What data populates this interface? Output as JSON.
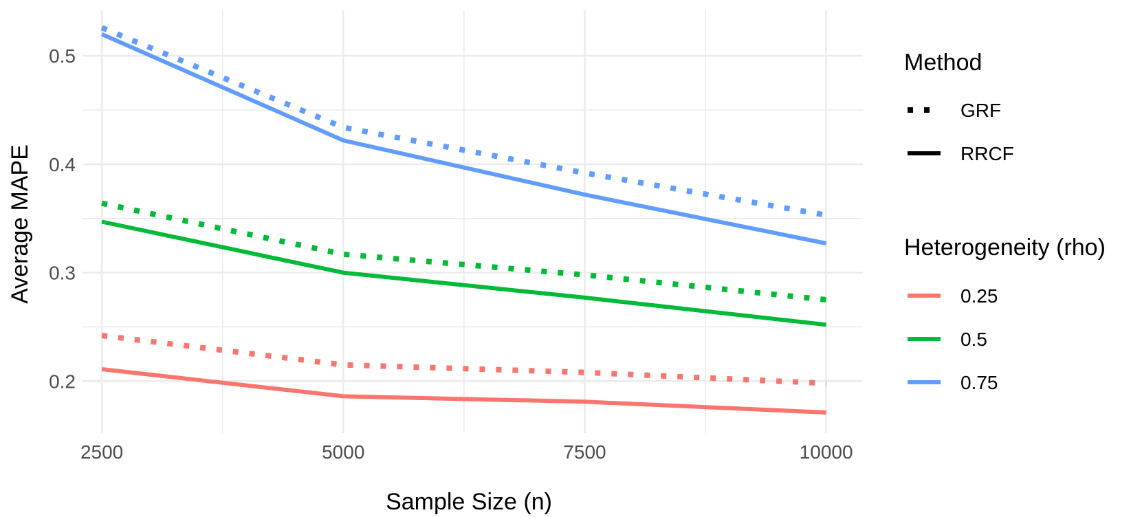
{
  "chart_data": {
    "type": "line",
    "xlabel": "Sample Size (n)",
    "ylabel": "Average MAPE",
    "x": [
      2500,
      5000,
      7500,
      10000
    ],
    "x_ticks": [
      2500,
      5000,
      7500,
      10000
    ],
    "x_tick_labels": [
      "2500",
      "5000",
      "7500",
      "10000"
    ],
    "xlim": [
      2300,
      10380
    ],
    "y_ticks": [
      0.2,
      0.3,
      0.4,
      0.5
    ],
    "y_tick_labels": [
      "0.2",
      "0.3",
      "0.4",
      "0.5"
    ],
    "ylim": [
      0.152,
      0.542
    ],
    "grid": true,
    "legend_position": "right",
    "legends": [
      {
        "title": "Method",
        "entries": [
          {
            "label": "GRF",
            "linetype": "dotted"
          },
          {
            "label": "RRCF",
            "linetype": "solid"
          }
        ]
      },
      {
        "title": "Heterogeneity (rho)",
        "entries": [
          {
            "label": "0.25",
            "color": "#f8766d"
          },
          {
            "label": "0.5",
            "color": "#00ba38"
          },
          {
            "label": "0.75",
            "color": "#619cff"
          }
        ]
      }
    ],
    "series": [
      {
        "method": "GRF",
        "rho": "0.25",
        "linetype": "dotted",
        "color": "#f8766d",
        "values": [
          0.242,
          0.215,
          0.208,
          0.198
        ]
      },
      {
        "method": "RRCF",
        "rho": "0.25",
        "linetype": "solid",
        "color": "#f8766d",
        "values": [
          0.211,
          0.186,
          0.181,
          0.171
        ]
      },
      {
        "method": "GRF",
        "rho": "0.5",
        "linetype": "dotted",
        "color": "#00ba38",
        "values": [
          0.364,
          0.317,
          0.298,
          0.275
        ]
      },
      {
        "method": "RRCF",
        "rho": "0.5",
        "linetype": "solid",
        "color": "#00ba38",
        "values": [
          0.347,
          0.3,
          0.277,
          0.252
        ]
      },
      {
        "method": "GRF",
        "rho": "0.75",
        "linetype": "dotted",
        "color": "#619cff",
        "values": [
          0.526,
          0.434,
          0.392,
          0.353
        ]
      },
      {
        "method": "RRCF",
        "rho": "0.75",
        "linetype": "solid",
        "color": "#619cff",
        "values": [
          0.52,
          0.422,
          0.372,
          0.327
        ]
      }
    ]
  }
}
